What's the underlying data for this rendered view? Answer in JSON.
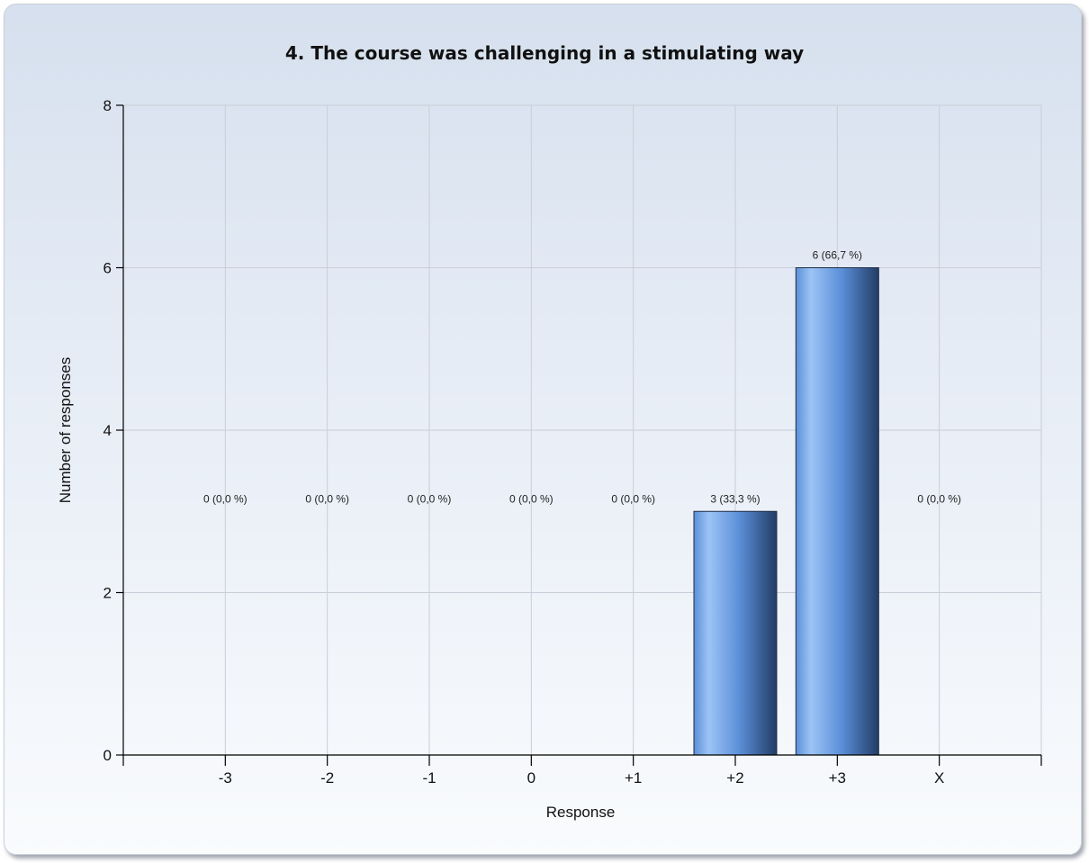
{
  "chart_data": {
    "type": "bar",
    "title": "4. The course was challenging in a stimulating way",
    "xlabel": "Response",
    "ylabel": "Number of responses",
    "categories": [
      "-3",
      "-2",
      "-1",
      "0",
      "+1",
      "+2",
      "+3",
      "X"
    ],
    "values": [
      0,
      0,
      0,
      0,
      0,
      3,
      6,
      0
    ],
    "data_labels": [
      "0 (0,0 %)",
      "0 (0,0 %)",
      "0 (0,0 %)",
      "0 (0,0 %)",
      "0 (0,0 %)",
      "3 (33,3 %)",
      "6 (66,7 %)",
      "0 (0,0 %)"
    ],
    "y_ticks": [
      "0",
      "2",
      "4",
      "6",
      "8"
    ],
    "ylim": [
      0,
      8
    ],
    "grid": true,
    "legend": "none",
    "colors": {
      "bar_light": "#9cc4f5",
      "bar_mid": "#5b8fd8",
      "bar_dark": "#223c66",
      "grid": "#c9ced6",
      "axis": "#000000"
    }
  }
}
